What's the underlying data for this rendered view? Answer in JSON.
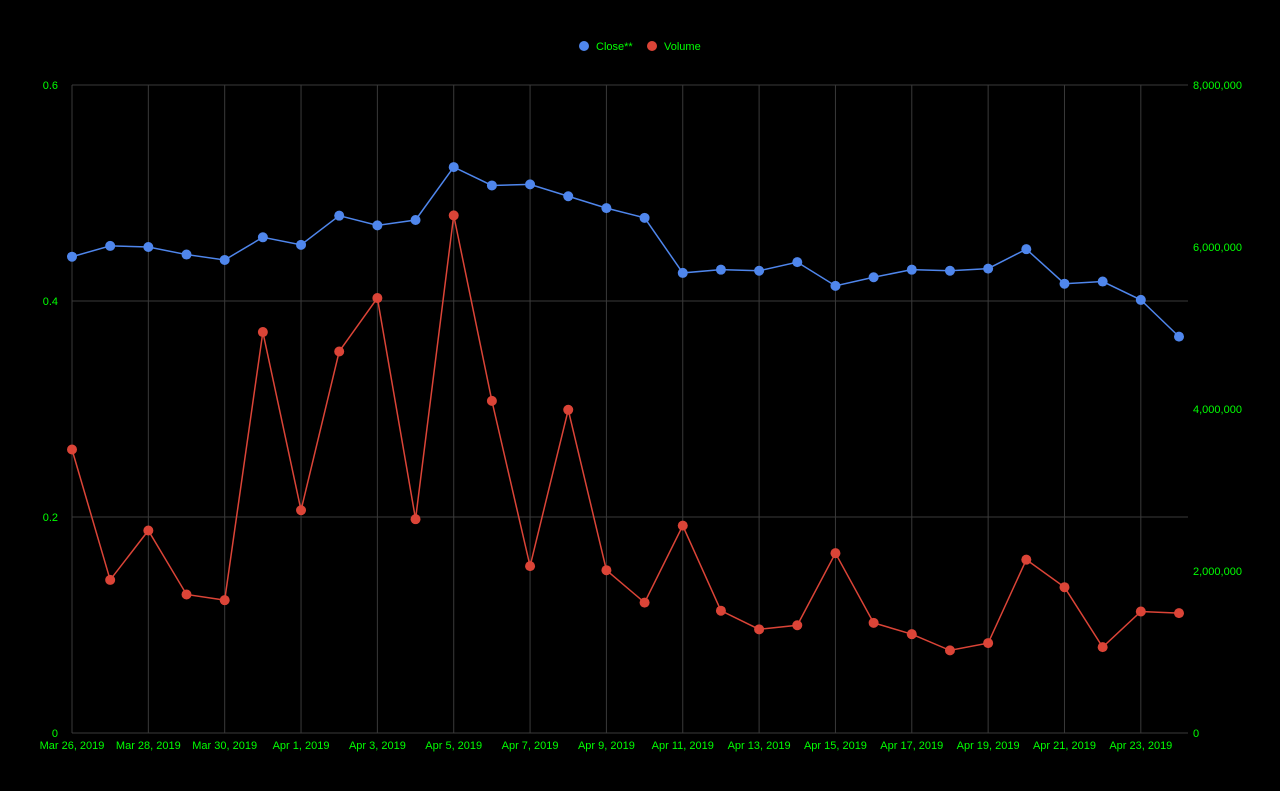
{
  "chart_data": {
    "type": "line",
    "title": "",
    "xlabel": "",
    "ylabel": "",
    "y2label": "",
    "grid": true,
    "legend_position": "top-center",
    "x": [
      "Mar 26, 2019",
      "Mar 27, 2019",
      "Mar 28, 2019",
      "Mar 29, 2019",
      "Mar 30, 2019",
      "Mar 31, 2019",
      "Apr 1, 2019",
      "Apr 2, 2019",
      "Apr 3, 2019",
      "Apr 4, 2019",
      "Apr 5, 2019",
      "Apr 6, 2019",
      "Apr 7, 2019",
      "Apr 8, 2019",
      "Apr 9, 2019",
      "Apr 10, 2019",
      "Apr 11, 2019",
      "Apr 12, 2019",
      "Apr 13, 2019",
      "Apr 14, 2019",
      "Apr 15, 2019",
      "Apr 16, 2019",
      "Apr 17, 2019",
      "Apr 18, 2019",
      "Apr 19, 2019",
      "Apr 20, 2019",
      "Apr 21, 2019",
      "Apr 22, 2019",
      "Apr 23, 2019",
      "Apr 24, 2019"
    ],
    "x_tick_labels": [
      "Mar 26, 2019",
      "Mar 28, 2019",
      "Mar 30, 2019",
      "Apr 1, 2019",
      "Apr 3, 2019",
      "Apr 5, 2019",
      "Apr 7, 2019",
      "Apr 9, 2019",
      "Apr 11, 2019",
      "Apr 13, 2019",
      "Apr 15, 2019",
      "Apr 17, 2019",
      "Apr 19, 2019",
      "Apr 21, 2019",
      "Apr 23, 2019"
    ],
    "y_left": {
      "ylim": [
        0,
        0.6
      ],
      "ticks": [
        0,
        0.2,
        0.4,
        0.6
      ],
      "tick_labels": [
        "0",
        "0.2",
        "0.4",
        "0.6"
      ]
    },
    "y_right": {
      "ylim": [
        0,
        8000000
      ],
      "ticks": [
        0,
        2000000,
        4000000,
        6000000,
        8000000
      ],
      "tick_labels": [
        "0",
        "2,000,000",
        "4,000,000",
        "6,000,000",
        "8,000,000"
      ]
    },
    "series": [
      {
        "name": "Close**",
        "axis": "left",
        "color": "#4f86ec",
        "values": [
          0.441,
          0.451,
          0.45,
          0.443,
          0.438,
          0.459,
          0.452,
          0.479,
          0.47,
          0.475,
          0.524,
          0.507,
          0.508,
          0.497,
          0.486,
          0.477,
          0.426,
          0.429,
          0.428,
          0.436,
          0.414,
          0.422,
          0.429,
          0.428,
          0.43,
          0.448,
          0.416,
          0.418,
          0.401,
          0.367
        ]
      },
      {
        "name": "Volume",
        "axis": "right",
        "color": "#db4437",
        "values": [
          3500000,
          1890000,
          2500000,
          1710000,
          1640000,
          4950000,
          2750000,
          4710000,
          5370000,
          2640000,
          6390000,
          4100000,
          2060000,
          3990000,
          2010000,
          1610000,
          2560000,
          1510000,
          1280000,
          1330000,
          2220000,
          1360000,
          1220000,
          1020000,
          1110000,
          2140000,
          1800000,
          1060000,
          1500000,
          1480000
        ]
      }
    ]
  },
  "style": {
    "background": "#000000",
    "axis_label_color": "#00ff00",
    "grid_color": "#3a3a3a"
  }
}
